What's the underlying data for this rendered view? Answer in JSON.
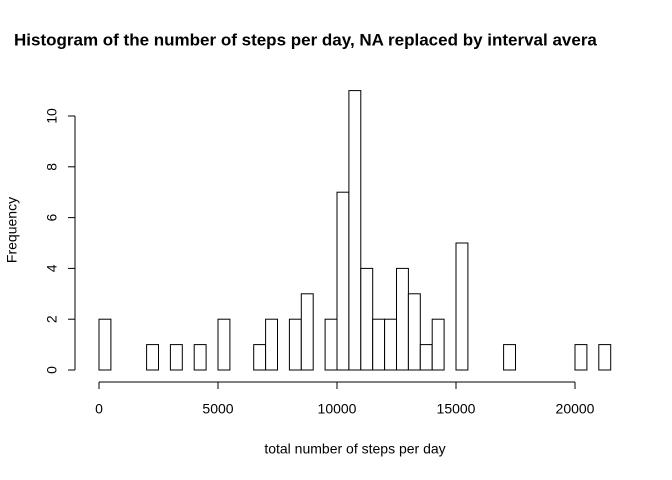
{
  "chart_data": {
    "type": "histogram",
    "title": "Histogram of the number of steps per day, NA replaced by interval avera",
    "x_label": "total number of steps per day",
    "y_label": "Frequency",
    "bins": [
      0,
      500,
      1000,
      1500,
      2000,
      2500,
      3000,
      3500,
      4000,
      4500,
      5000,
      5500,
      6000,
      6500,
      7000,
      7500,
      8000,
      8500,
      9000,
      9500,
      10000,
      10500,
      11000,
      11500,
      12000,
      12500,
      13000,
      13500,
      14000,
      14500,
      15000,
      15500,
      16000,
      16500,
      17000,
      17500,
      18000,
      18500,
      19000,
      19500,
      20000,
      20500,
      21000,
      21500
    ],
    "values": [
      2,
      0,
      0,
      0,
      1,
      0,
      1,
      0,
      1,
      0,
      2,
      0,
      0,
      1,
      2,
      0,
      2,
      3,
      0,
      2,
      7,
      11,
      4,
      2,
      2,
      4,
      3,
      1,
      2,
      0,
      5,
      0,
      0,
      0,
      1,
      0,
      0,
      0,
      0,
      0,
      1,
      0,
      1
    ],
    "color": "#ffffff",
    "xlim": [
      0,
      21500
    ],
    "ylim": [
      0,
      11
    ],
    "xticks": [
      0,
      5000,
      10000,
      15000,
      20000
    ],
    "yticks": [
      0,
      2,
      4,
      6,
      8,
      10
    ]
  }
}
